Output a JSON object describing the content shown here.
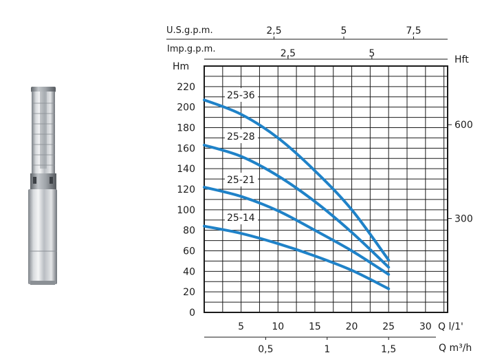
{
  "product": {
    "image": "submersible-pump"
  },
  "chart_data": {
    "type": "line",
    "xlabel": "Q l/1'",
    "ylabel": "Hm",
    "xlim": [
      0,
      33
    ],
    "ylim": [
      0,
      240
    ],
    "x_ticks": [
      5,
      10,
      15,
      20,
      25,
      30
    ],
    "y_ticks": [
      0,
      20,
      40,
      60,
      80,
      100,
      120,
      140,
      160,
      180,
      200,
      220
    ],
    "grid": true,
    "curve_color": "#1f82c8",
    "series": [
      {
        "name": "25-36",
        "x": [
          0,
          5,
          10,
          15,
          20,
          25
        ],
        "y": [
          207,
          193,
          170,
          138,
          100,
          51
        ]
      },
      {
        "name": "25-28",
        "x": [
          0,
          5,
          10,
          15,
          20,
          25
        ],
        "y": [
          163,
          152,
          133,
          108,
          78,
          44
        ]
      },
      {
        "name": "25-21",
        "x": [
          0,
          5,
          10,
          15,
          20,
          25
        ],
        "y": [
          122,
          113,
          99,
          80,
          60,
          37
        ]
      },
      {
        "name": "25-14",
        "x": [
          0,
          5,
          10,
          15,
          20,
          25
        ],
        "y": [
          84,
          77,
          67,
          55,
          41,
          23
        ]
      }
    ],
    "axes": {
      "us_gpm": {
        "label": "U.S.g.p.m.",
        "ticks": [
          "2,5",
          "5",
          "7,5"
        ],
        "values": [
          2.5,
          5,
          7.5
        ]
      },
      "imp_gpm": {
        "label": "Imp.g.p.m.",
        "ticks": [
          "2,5",
          "5"
        ],
        "values": [
          2.5,
          5
        ]
      },
      "hft": {
        "label": "Hft",
        "ticks": [
          "600",
          "300"
        ],
        "values": [
          600,
          300
        ]
      },
      "q_m3h": {
        "label": "Q m³/h",
        "ticks": [
          "0,5",
          "1",
          "1,5"
        ],
        "values": [
          0.5,
          1,
          1.5
        ]
      }
    }
  }
}
